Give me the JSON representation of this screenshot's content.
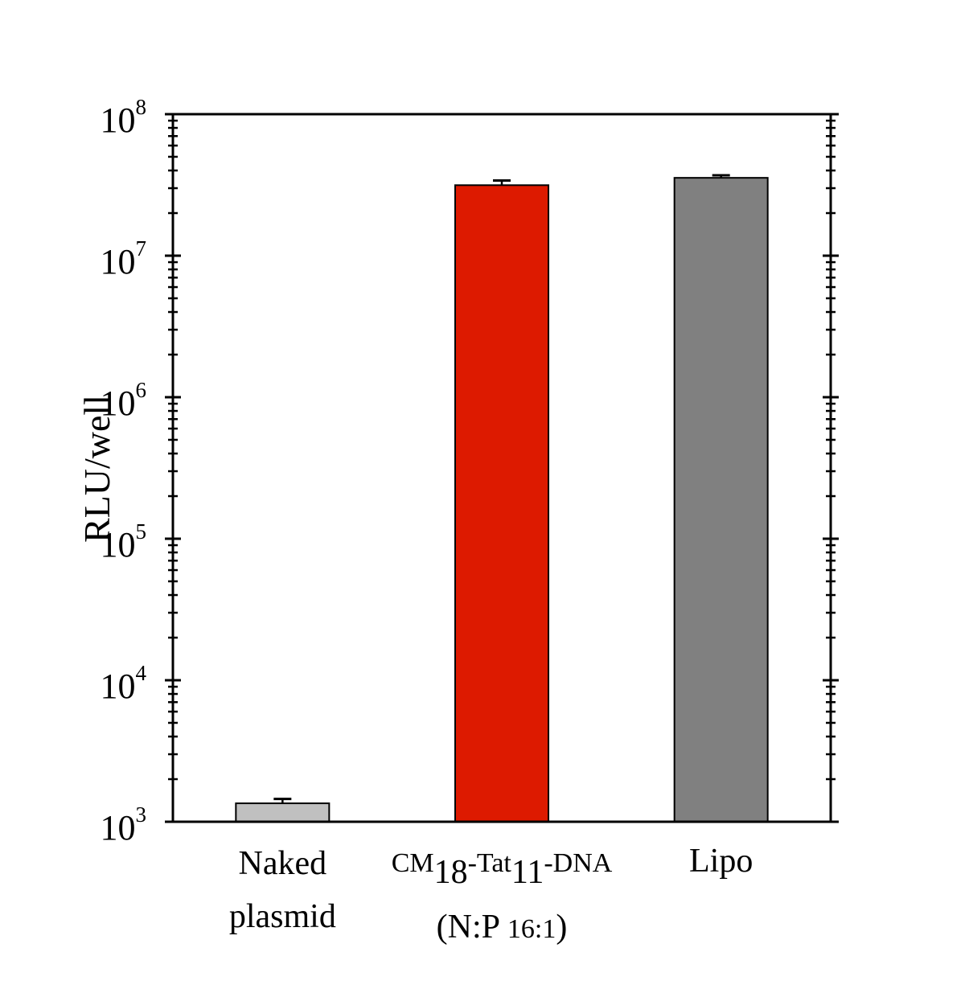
{
  "chart_data": {
    "type": "bar",
    "ylabel": "RLU/well",
    "yscale": "log",
    "ylim": [
      1000,
      100000000
    ],
    "yticks": [
      {
        "base": "10",
        "exp": "3",
        "value": 1000
      },
      {
        "base": "10",
        "exp": "4",
        "value": 10000
      },
      {
        "base": "10",
        "exp": "5",
        "value": 100000
      },
      {
        "base": "10",
        "exp": "6",
        "value": 1000000
      },
      {
        "base": "10",
        "exp": "7",
        "value": 10000000
      },
      {
        "base": "10",
        "exp": "8",
        "value": 100000000
      }
    ],
    "categories": [
      {
        "lines": [
          "Naked",
          "plasmid"
        ]
      },
      {
        "lines": [
          "CM18-Tat11-DNA",
          "(N:P 16:1)"
        ]
      },
      {
        "lines": [
          "Lipo"
        ]
      }
    ],
    "category_label_parts": {
      "cm": "CM",
      "cm_sub": "18",
      "tat": "-Tat",
      "tat_sub": "11",
      "dna": "-DNA",
      "np_open": "(N:P ",
      "np_ratio": "16:1",
      "np_close": ")"
    },
    "values": [
      1350,
      31500000,
      35500000
    ],
    "errors": [
      100,
      2500000,
      1500000
    ],
    "colors": [
      "#c0c0c0",
      "#dd1a00",
      "#808080"
    ],
    "grid": false,
    "legend": false
  }
}
